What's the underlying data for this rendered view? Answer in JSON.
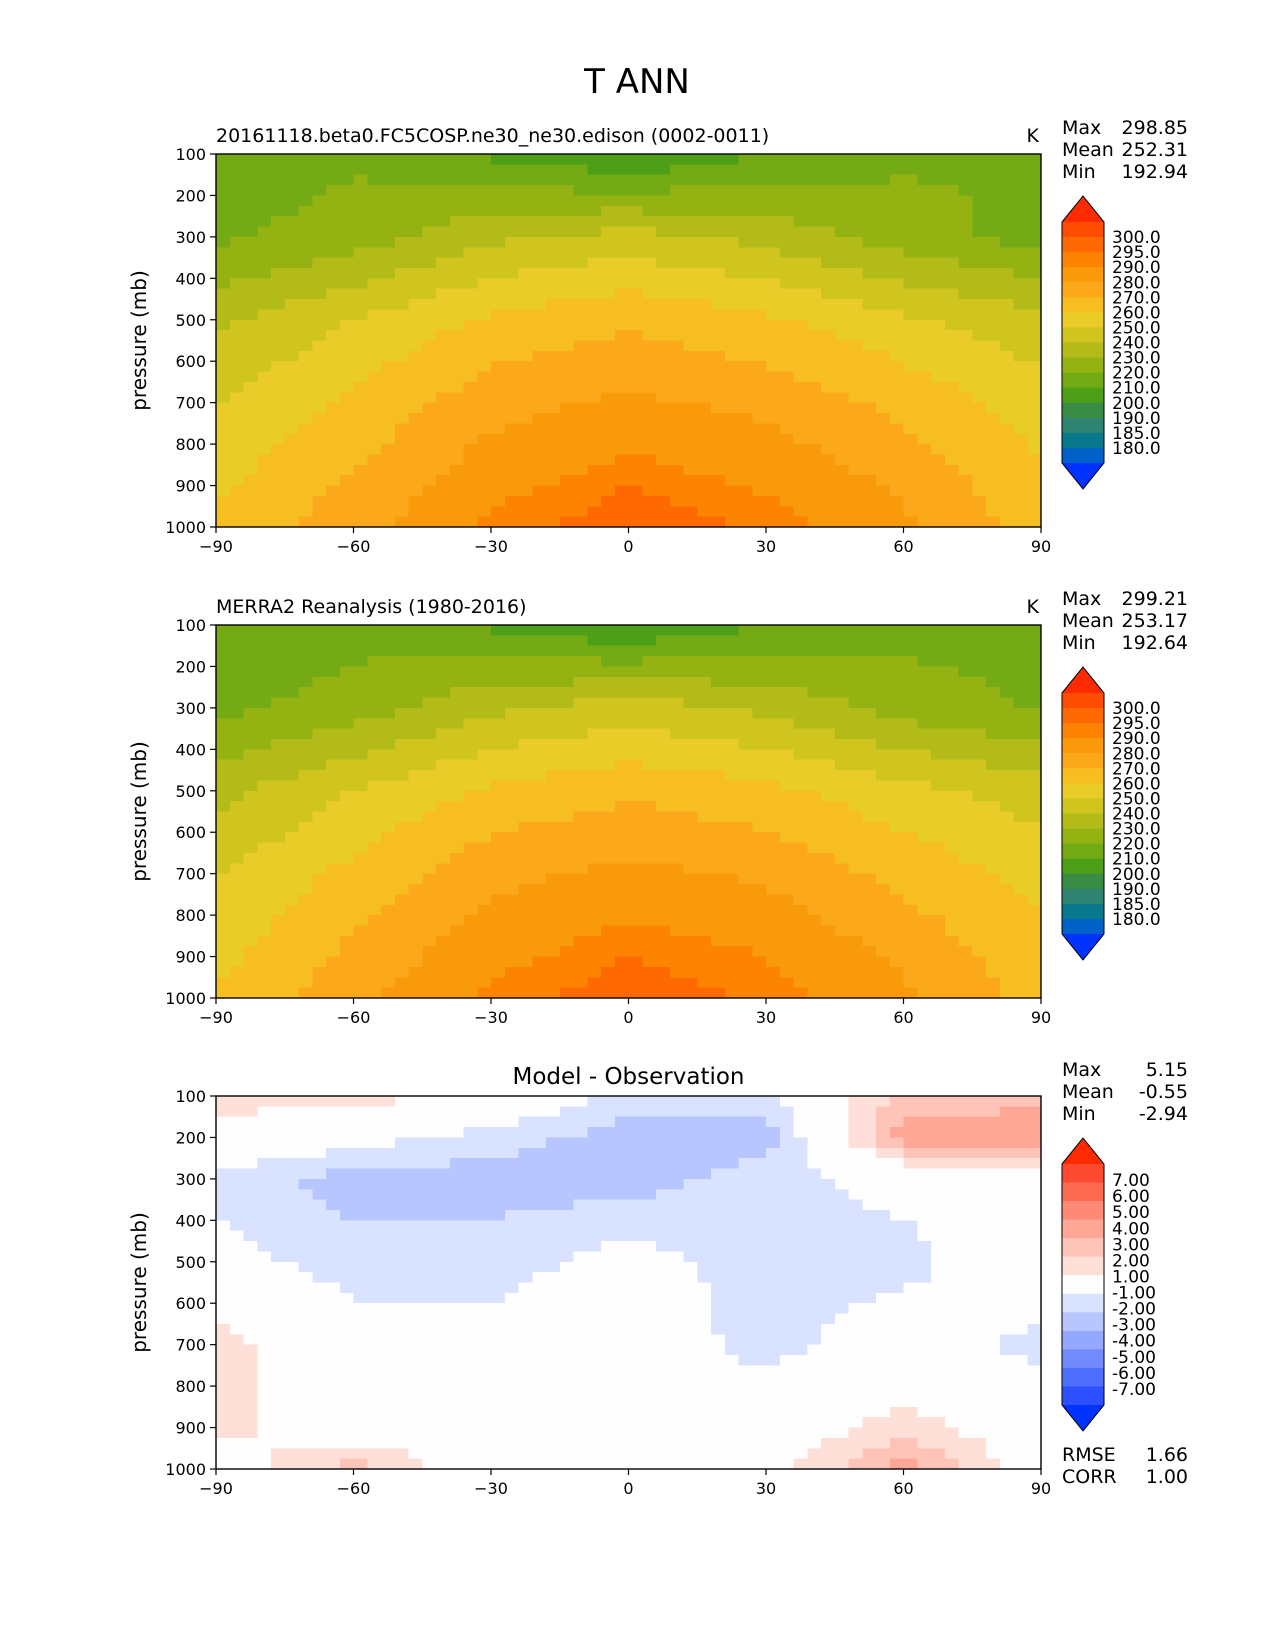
{
  "figure": {
    "title": "T ANN"
  },
  "chart_data": [
    {
      "type": "heatmap",
      "title": "20161118.beta0.FC5COSP.ne30_ne30.edison (0002-0011)",
      "units": "K",
      "ylabel": "pressure (mb)",
      "xlabel": "",
      "xlim": [
        -90,
        90
      ],
      "ylim": [
        1000,
        100
      ],
      "xticks": [
        "−90",
        "−60",
        "−30",
        "0",
        "30",
        "60",
        "90"
      ],
      "yticks": [
        "100",
        "200",
        "300",
        "400",
        "500",
        "600",
        "700",
        "800",
        "900",
        "1000"
      ],
      "stats": {
        "labels": [
          "Max",
          "Mean",
          "Min"
        ],
        "values": [
          "298.85",
          "252.31",
          "192.94"
        ]
      },
      "colorbar": {
        "levels": [
          "300.0",
          "295.0",
          "290.0",
          "280.0",
          "270.0",
          "260.0",
          "250.0",
          "240.0",
          "230.0",
          "220.0",
          "210.0",
          "200.0",
          "190.0",
          "185.0",
          "180.0"
        ],
        "colors": [
          "#ff2a00",
          "#ff4d00",
          "#ff6a00",
          "#fc8400",
          "#f99a0b",
          "#fba91b",
          "#f7be22",
          "#e9cc27",
          "#cfc51e",
          "#b3bb18",
          "#94b312",
          "#74ab14",
          "#4e9f18",
          "#3a8b45",
          "#2e8470",
          "#08788c",
          "#0061c8",
          "#0033ff"
        ]
      },
      "data_grid": {
        "lat": [
          -90,
          -60,
          -30,
          0,
          30,
          60,
          90
        ],
        "plev": [
          100,
          300,
          500,
          700,
          900,
          1000
        ],
        "values": [
          [
            213,
            218,
            208,
            200,
            210,
            218,
            220
          ],
          [
            218,
            225,
            238,
            244,
            237,
            225,
            216
          ],
          [
            238,
            250,
            262,
            268,
            262,
            252,
            243
          ],
          [
            250,
            262,
            276,
            282,
            277,
            267,
            255
          ],
          [
            258,
            272,
            287,
            295,
            289,
            278,
            262
          ],
          [
            262,
            276,
            292,
            299,
            294,
            282,
            265
          ]
        ]
      }
    },
    {
      "type": "heatmap",
      "title": "MERRA2 Reanalysis (1980-2016)",
      "units": "K",
      "ylabel": "pressure (mb)",
      "xlabel": "",
      "xlim": [
        -90,
        90
      ],
      "ylim": [
        1000,
        100
      ],
      "xticks": [
        "−90",
        "−60",
        "−30",
        "0",
        "30",
        "60",
        "90"
      ],
      "yticks": [
        "100",
        "200",
        "300",
        "400",
        "500",
        "600",
        "700",
        "800",
        "900",
        "1000"
      ],
      "stats": {
        "labels": [
          "Max",
          "Mean",
          "Min"
        ],
        "values": [
          "299.21",
          "253.17",
          "192.64"
        ]
      },
      "colorbar": {
        "levels": [
          "300.0",
          "295.0",
          "290.0",
          "280.0",
          "270.0",
          "260.0",
          "250.0",
          "240.0",
          "230.0",
          "220.0",
          "210.0",
          "200.0",
          "190.0",
          "185.0",
          "180.0"
        ],
        "colors": [
          "#ff2a00",
          "#ff4d00",
          "#ff6a00",
          "#fc8400",
          "#f99a0b",
          "#fba91b",
          "#f7be22",
          "#e9cc27",
          "#cfc51e",
          "#b3bb18",
          "#94b312",
          "#74ab14",
          "#4e9f18",
          "#3a8b45",
          "#2e8470",
          "#08788c",
          "#0061c8",
          "#0033ff"
        ]
      },
      "data_grid": {
        "lat": [
          -90,
          -60,
          -30,
          0,
          30,
          60,
          90
        ],
        "plev": [
          100,
          300,
          500,
          700,
          900,
          1000
        ],
        "values": [
          [
            210,
            216,
            208,
            200,
            210,
            216,
            216
          ],
          [
            217,
            225,
            238,
            245,
            238,
            226,
            219
          ],
          [
            237,
            250,
            262,
            268,
            263,
            253,
            245
          ],
          [
            249,
            263,
            277,
            283,
            278,
            267,
            256
          ],
          [
            257,
            273,
            287,
            295,
            290,
            278,
            264
          ],
          [
            261,
            277,
            292,
            299,
            294,
            282,
            266
          ]
        ]
      }
    },
    {
      "type": "heatmap",
      "title": "Model - Observation",
      "units": "",
      "ylabel": "pressure (mb)",
      "xlabel": "",
      "xlim": [
        -90,
        90
      ],
      "ylim": [
        1000,
        100
      ],
      "xticks": [
        "−90",
        "−60",
        "−30",
        "0",
        "30",
        "60",
        "90"
      ],
      "yticks": [
        "100",
        "200",
        "300",
        "400",
        "500",
        "600",
        "700",
        "800",
        "900",
        "1000"
      ],
      "stats": {
        "labels": [
          "Max",
          "Mean",
          "Min"
        ],
        "values": [
          "5.15",
          "-0.55",
          "-2.94"
        ]
      },
      "metrics": {
        "labels": [
          "RMSE",
          "CORR"
        ],
        "values": [
          "1.66",
          "1.00"
        ]
      },
      "colorbar": {
        "levels": [
          "7.00",
          "6.00",
          "5.00",
          "4.00",
          "3.00",
          "2.00",
          "1.00",
          "-1.00",
          "-2.00",
          "-3.00",
          "-4.00",
          "-5.00",
          "-6.00",
          "-7.00"
        ],
        "colors": [
          "#ff2a00",
          "#fe4a2e",
          "#fd6a52",
          "#fd8a75",
          "#fea796",
          "#ffc4b8",
          "#ffe0d9",
          "#fefefe",
          "#d9e2fe",
          "#b7c6fe",
          "#93a8fe",
          "#718afe",
          "#4f6efe",
          "#2c50fe",
          "#0033ff"
        ]
      },
      "data_grid": {
        "lat": [
          -90,
          -60,
          -30,
          0,
          30,
          60,
          90
        ],
        "plev": [
          100,
          200,
          300,
          500,
          700,
          900,
          1000
        ],
        "values": [
          [
            1.5,
            1.5,
            0.5,
            -1.5,
            -1.5,
            2.5,
            2.5
          ],
          [
            0.5,
            -0.5,
            -1.5,
            -2.5,
            -2.5,
            3.5,
            4.0
          ],
          [
            -1.5,
            -2.5,
            -2.5,
            -2.5,
            -1.5,
            -0.5,
            -0.5
          ],
          [
            -0.5,
            -1.5,
            -1.5,
            -0.5,
            -1.5,
            -1.5,
            0.5
          ],
          [
            1.5,
            -0.5,
            -0.5,
            0.0,
            -1.5,
            0.0,
            -1.5
          ],
          [
            1.5,
            0.0,
            0.0,
            0.0,
            0.0,
            1.5,
            0.0
          ],
          [
            0.0,
            2.5,
            0.0,
            0.0,
            0.5,
            3.5,
            0.0
          ]
        ]
      }
    }
  ]
}
